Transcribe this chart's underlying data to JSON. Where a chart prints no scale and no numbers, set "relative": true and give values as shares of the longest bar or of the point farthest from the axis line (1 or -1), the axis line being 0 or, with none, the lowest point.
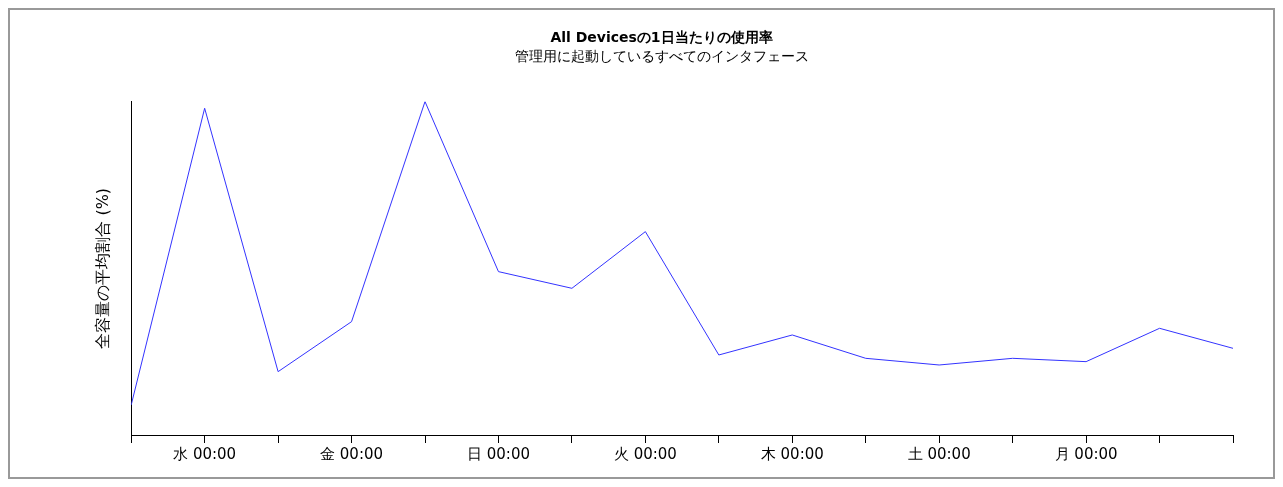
{
  "chart_data": {
    "type": "line",
    "title": "All Devicesの1日当たりの使用率",
    "subtitle": "管理用に起動しているすべてのインタフェース",
    "ylabel": "全容量の平均割合 (%)",
    "relative": true,
    "categories": [
      null,
      "水 00:00",
      null,
      "金 00:00",
      null,
      "日 00:00",
      null,
      "火 00:00",
      null,
      "木 00:00",
      null,
      "土 00:00",
      null,
      "月 00:00",
      null,
      null
    ],
    "series": [
      {
        "color": "#3333ff",
        "values": [
          0.09,
          0.98,
          0.19,
          0.34,
          1.0,
          0.49,
          0.44,
          0.61,
          0.24,
          0.3,
          0.23,
          0.21,
          0.23,
          0.22,
          0.32,
          0.26
        ]
      }
    ],
    "grid": false,
    "legend": false,
    "marker": "none",
    "line_style": "solid"
  }
}
